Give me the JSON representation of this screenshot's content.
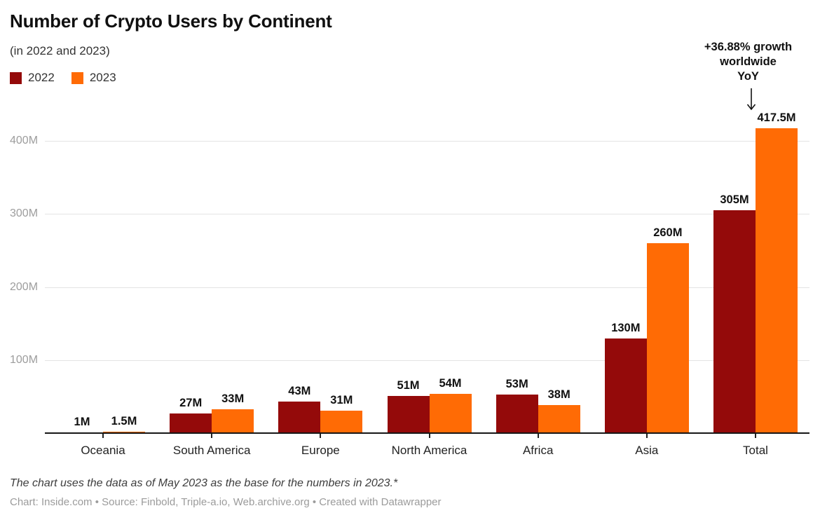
{
  "header": {
    "title": "Number of Crypto Users by Continent",
    "subtitle": "(in 2022 and 2023)"
  },
  "annotation": {
    "lines": [
      "+36.88% growth",
      "worldwide",
      "YoY"
    ]
  },
  "chart_data": {
    "type": "bar",
    "title": "Number of Crypto Users by Continent",
    "subtitle": "(in 2022 and 2023)",
    "categories": [
      "Oceania",
      "South America",
      "Europe",
      "North America",
      "Africa",
      "Asia",
      "Total"
    ],
    "series": [
      {
        "name": "2022",
        "color": "#940A0A",
        "values": [
          1,
          27,
          43,
          51,
          53,
          130,
          305
        ],
        "value_labels": [
          "1M",
          "27M",
          "43M",
          "51M",
          "53M",
          "130M",
          "305M"
        ]
      },
      {
        "name": "2023",
        "color": "#FF6B05",
        "values": [
          1.5,
          33,
          31,
          54,
          38,
          260,
          417.5
        ],
        "value_labels": [
          "1.5M",
          "33M",
          "31M",
          "54M",
          "38M",
          "260M",
          "417.5M"
        ]
      }
    ],
    "xlabel": "",
    "ylabel": "",
    "unit": "M (millions of users)",
    "ylim": [
      0,
      440
    ],
    "yticks": [
      {
        "value": 100,
        "label": "100M"
      },
      {
        "value": 200,
        "label": "200M"
      },
      {
        "value": 300,
        "label": "300M"
      },
      {
        "value": 400,
        "label": "400M"
      }
    ],
    "grid": true,
    "legend_position": "top-left",
    "annotation_text": "+36.88% growth worldwide YoY",
    "annotation_target": "Total 2023 bar (417.5M)"
  },
  "footer": {
    "note": "The chart uses the data as of May 2023 as the base for the numbers in 2023.*",
    "credits": "Chart: Inside.com • Source: Finbold, Triple-a.io, Web.archive.org • Created with Datawrapper"
  }
}
